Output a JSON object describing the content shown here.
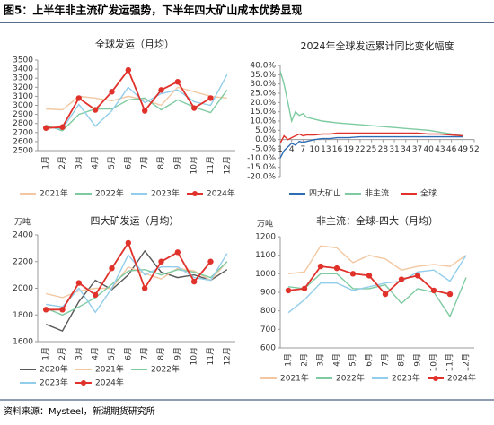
{
  "header": {
    "title": "图5：上半年非主流矿发运强势，下半年四大矿山成本优势显现"
  },
  "source": "资料来源：Mysteel，新湖期货研究所",
  "chart_data": [
    {
      "type": "line",
      "title": "全球发运（月均）",
      "categories": [
        "1月",
        "2月",
        "3月",
        "4月",
        "5月",
        "6月",
        "7月",
        "8月",
        "9月",
        "10月",
        "11月",
        "12月"
      ],
      "ylim": [
        2500,
        3500
      ],
      "yticks": [
        2500,
        2600,
        2700,
        2800,
        2900,
        3000,
        3100,
        3200,
        3300,
        3400,
        3500
      ],
      "series": [
        {
          "name": "2021年",
          "color": "#f2c8a2",
          "values": [
            2960,
            2950,
            3100,
            3080,
            3050,
            3100,
            3060,
            3000,
            3200,
            3150,
            3100,
            3080
          ]
        },
        {
          "name": "2022年",
          "color": "#7ecba1",
          "values": [
            2780,
            2720,
            2900,
            2960,
            2960,
            3060,
            3080,
            2950,
            3060,
            2980,
            2920,
            3170
          ]
        },
        {
          "name": "2023年",
          "color": "#92cdea",
          "values": [
            2760,
            2740,
            3010,
            2770,
            2940,
            3200,
            3030,
            3130,
            3170,
            3040,
            3000,
            3340
          ]
        },
        {
          "name": "2024年",
          "color": "#e0322b",
          "marker": true,
          "values": [
            2750,
            2760,
            3080,
            2950,
            3150,
            3390,
            2940,
            3170,
            3260,
            2970,
            3080,
            null
          ]
        }
      ]
    },
    {
      "type": "line_xy",
      "title": "2024年全球发运累计同比变化幅度",
      "x": [
        1,
        2,
        3,
        4,
        5,
        6,
        7,
        8,
        10,
        12,
        14,
        16,
        19,
        22,
        25,
        28,
        31,
        34,
        37,
        40,
        43,
        46,
        49
      ],
      "xlim": [
        1,
        52
      ],
      "xticks": [
        1,
        4,
        7,
        10,
        13,
        16,
        19,
        22,
        25,
        28,
        31,
        34,
        37,
        40,
        43,
        46,
        49,
        52
      ],
      "ylim": [
        -20,
        40
      ],
      "yticks": [
        {
          "value": -20,
          "label": "-20.0%"
        },
        {
          "value": -15,
          "label": "-15.0%"
        },
        {
          "value": -10,
          "label": "-10.0%"
        },
        {
          "value": -5,
          "label": "-5.0%"
        },
        {
          "value": 0,
          "label": "0.0%"
        },
        {
          "value": 5,
          "label": "5.0%"
        },
        {
          "value": 10,
          "label": "10.0%"
        },
        {
          "value": 15,
          "label": "15.0%"
        },
        {
          "value": 20,
          "label": "20.0%"
        },
        {
          "value": 25,
          "label": "25.0%"
        },
        {
          "value": 30,
          "label": "30.0%"
        },
        {
          "value": 35,
          "label": "35.0%"
        },
        {
          "value": 40,
          "label": "40.0%"
        }
      ],
      "series": [
        {
          "name": "四大矿山",
          "color": "#2e6db4",
          "values": [
            -10,
            -6,
            -4,
            -2,
            -3,
            -1,
            -1.5,
            -1,
            0,
            0.5,
            0.5,
            1,
            1,
            1.5,
            1.5,
            1.5,
            1.5,
            1.5,
            1.5,
            1.5,
            1.5,
            1.5,
            1.5
          ]
        },
        {
          "name": "非主流",
          "color": "#7ecba1",
          "values": [
            37,
            30,
            20,
            10,
            15,
            13,
            14,
            12,
            11,
            10,
            9.5,
            9,
            8.5,
            8,
            7.5,
            7,
            6.5,
            6,
            5.5,
            5,
            4,
            3,
            2
          ]
        },
        {
          "name": "全球",
          "color": "#e0322b",
          "values": [
            -2,
            2,
            0,
            1,
            2,
            3,
            2,
            2.5,
            2.5,
            3,
            3,
            3.5,
            3.5,
            3.5,
            3.5,
            3.5,
            3.5,
            3.5,
            3.5,
            3,
            3,
            2.5,
            2
          ]
        }
      ]
    },
    {
      "type": "line",
      "title": "四大矿发运（月均）",
      "y_label": "万吨",
      "categories": [
        "1月",
        "2月",
        "3月",
        "4月",
        "5月",
        "6月",
        "7月",
        "8月",
        "9月",
        "10月",
        "11月",
        "12月"
      ],
      "ylim": [
        1600,
        2400
      ],
      "yticks": [
        1600,
        1800,
        2000,
        2200,
        2400
      ],
      "series": [
        {
          "name": "2020年",
          "color": "#595959",
          "values": [
            1730,
            1680,
            1900,
            2060,
            1990,
            2100,
            2280,
            2120,
            2080,
            2100,
            2060,
            2140
          ]
        },
        {
          "name": "2021年",
          "color": "#f2c8a2",
          "values": [
            1960,
            1930,
            1980,
            2000,
            2000,
            2160,
            2110,
            2070,
            2150,
            2130,
            2060,
            2200
          ]
        },
        {
          "name": "2022年",
          "color": "#7ecba1",
          "values": [
            1850,
            1800,
            1860,
            1930,
            2030,
            2130,
            2140,
            2100,
            2140,
            2120,
            2080,
            2200
          ]
        },
        {
          "name": "2023年",
          "color": "#92cdea",
          "values": [
            1880,
            1860,
            2000,
            1820,
            2000,
            2250,
            2100,
            2160,
            2160,
            2080,
            2060,
            2260
          ]
        },
        {
          "name": "2024年",
          "color": "#e0322b",
          "marker": true,
          "values": [
            1840,
            1840,
            2040,
            1950,
            2150,
            2340,
            2000,
            2200,
            2270,
            2050,
            2200,
            null
          ]
        }
      ]
    },
    {
      "type": "line",
      "title": "非主流：全球-四大（月均）",
      "y_label": "万吨",
      "categories": [
        "1月",
        "2月",
        "3月",
        "4月",
        "5月",
        "6月",
        "7月",
        "8月",
        "9月",
        "10月",
        "11月",
        "12月"
      ],
      "ylim": [
        600,
        1200
      ],
      "yticks": [
        600,
        700,
        800,
        900,
        1000,
        1100,
        1200
      ],
      "series": [
        {
          "name": "2021年",
          "color": "#f2c8a2",
          "values": [
            1000,
            1010,
            1150,
            1140,
            1060,
            1100,
            1080,
            1020,
            1040,
            1050,
            1040,
            1100
          ]
        },
        {
          "name": "2022年",
          "color": "#7ecba1",
          "values": [
            930,
            920,
            1000,
            1000,
            920,
            920,
            940,
            840,
            920,
            900,
            770,
            980
          ]
        },
        {
          "name": "2023年",
          "color": "#92cdea",
          "values": [
            790,
            860,
            950,
            950,
            910,
            930,
            950,
            960,
            1010,
            1020,
            960,
            1100
          ]
        },
        {
          "name": "2024年",
          "color": "#e0322b",
          "marker": true,
          "values": [
            910,
            920,
            1040,
            1030,
            1000,
            990,
            890,
            970,
            990,
            910,
            890,
            null
          ]
        }
      ]
    }
  ]
}
